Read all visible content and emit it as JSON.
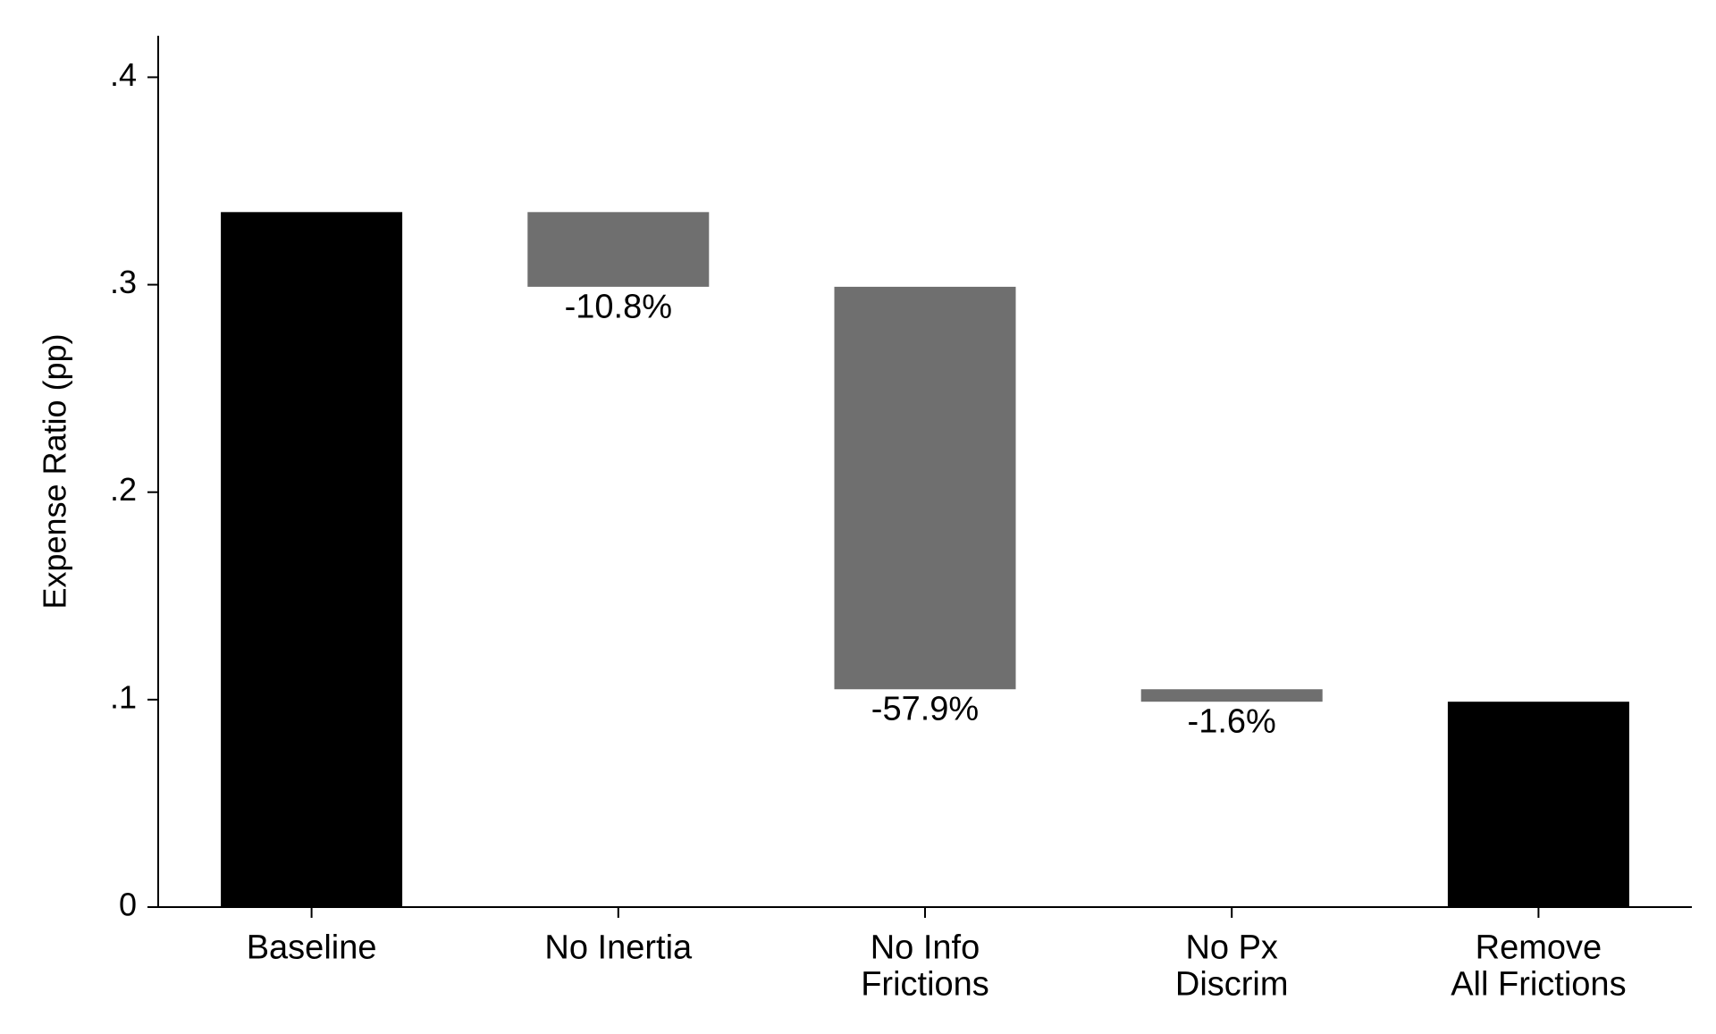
{
  "chart_data": {
    "type": "bar",
    "subtype": "waterfall",
    "title": "",
    "xlabel": "",
    "ylabel": "Expense Ratio (pp)",
    "ylim": [
      0,
      0.42
    ],
    "yticks": [
      {
        "value": 0,
        "label": "0"
      },
      {
        "value": 0.1,
        "label": ".1"
      },
      {
        "value": 0.2,
        "label": ".2"
      },
      {
        "value": 0.3,
        "label": ".3"
      },
      {
        "value": 0.4,
        "label": ".4"
      }
    ],
    "grid": false,
    "legend": "none",
    "categories": [
      [
        "Baseline"
      ],
      [
        "No Inertia"
      ],
      [
        "No Info",
        "Frictions"
      ],
      [
        "No Px",
        "Discrim"
      ],
      [
        "Remove",
        "All Frictions"
      ]
    ],
    "bars": [
      {
        "category": "Baseline",
        "kind": "total",
        "base": 0,
        "top": 0.335,
        "label": ""
      },
      {
        "category": "No Inertia",
        "kind": "change",
        "base": 0.299,
        "top": 0.335,
        "label": "-10.8%"
      },
      {
        "category": "No Info Frictions",
        "kind": "change",
        "base": 0.105,
        "top": 0.299,
        "label": "-57.9%"
      },
      {
        "category": "No Px Discrim",
        "kind": "change",
        "base": 0.099,
        "top": 0.105,
        "label": "-1.6%"
      },
      {
        "category": "Remove All Frictions",
        "kind": "total",
        "base": 0,
        "top": 0.099,
        "label": ""
      }
    ],
    "colors": {
      "total": "#000000",
      "change": "#6f6f6f",
      "axis": "#000000"
    }
  }
}
